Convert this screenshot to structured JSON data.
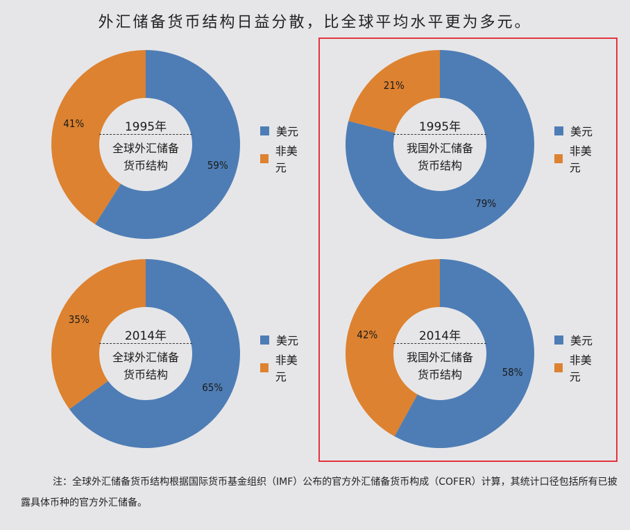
{
  "title": "外汇储备货币结构日益分散，比全球平均水平更为多元。",
  "colors": {
    "usd": "#4e7db5",
    "non_usd": "#dd8230",
    "hole": "#e6e6e8",
    "highlight": "#e3343c"
  },
  "chart_data": [
    {
      "type": "pie",
      "year": "1995年",
      "center_label": [
        "全球外汇储备",
        "货币结构"
      ],
      "slices": [
        {
          "name": "美元",
          "value": 59,
          "label": "59%"
        },
        {
          "name": "非美元",
          "value": 41,
          "label": "41%"
        }
      ],
      "legend": [
        "美元",
        "非美元"
      ],
      "legend_position": "right"
    },
    {
      "type": "pie",
      "year": "1995年",
      "center_label": [
        "我国外汇储备",
        "货币结构"
      ],
      "slices": [
        {
          "name": "美元",
          "value": 79,
          "label": "79%"
        },
        {
          "name": "非美元",
          "value": 21,
          "label": "21%"
        }
      ],
      "legend": [
        "美元",
        "非美元"
      ],
      "legend_position": "right"
    },
    {
      "type": "pie",
      "year": "2014年",
      "center_label": [
        "全球外汇储备",
        "货币结构"
      ],
      "slices": [
        {
          "name": "美元",
          "value": 65,
          "label": "65%"
        },
        {
          "name": "非美元",
          "value": 35,
          "label": "35%"
        }
      ],
      "legend": [
        "美元",
        "非美元"
      ],
      "legend_position": "right"
    },
    {
      "type": "pie",
      "year": "2014年",
      "center_label": [
        "我国外汇储备",
        "货币结构"
      ],
      "slices": [
        {
          "name": "美元",
          "value": 58,
          "label": "58%"
        },
        {
          "name": "非美元",
          "value": 42,
          "label": "42%"
        }
      ],
      "legend": [
        "美元",
        "非美元"
      ],
      "legend_position": "right"
    }
  ],
  "footnote": "注：全球外汇储备货币结构根据国际货币基金组织（IMF）公布的官方外汇储备货币构成（COFER）计算，其统计口径包括所有已披露具体币种的官方外汇储备。"
}
